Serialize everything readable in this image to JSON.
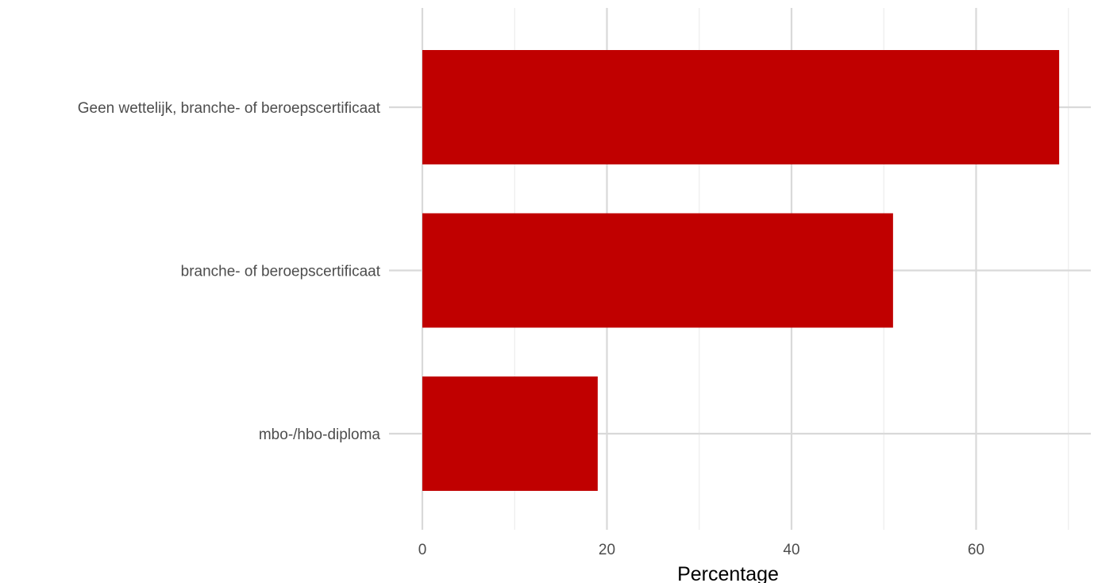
{
  "chart_data": {
    "type": "bar",
    "orientation": "horizontal",
    "categories": [
      "Geen wettelijk, branche- of beroepscertificaat",
      "branche- of beroepscertificaat",
      "mbo-/hbo-diploma"
    ],
    "values": [
      69,
      51,
      19
    ],
    "title": "",
    "xlabel": "Percentage",
    "ylabel": "",
    "xlim": [
      0,
      70
    ],
    "x_ticks": [
      0,
      20,
      40,
      60
    ],
    "x_tick_labels": [
      "0",
      "20",
      "40",
      "60"
    ],
    "grid": true,
    "legend": "none",
    "bar_color": "#c00000"
  }
}
